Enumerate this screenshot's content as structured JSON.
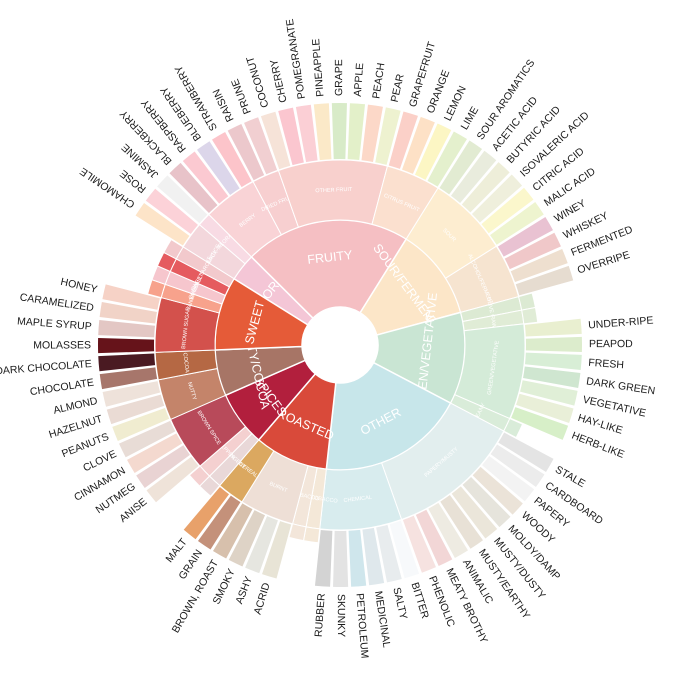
{
  "wheel": {
    "categories": [
      {
        "label": "FLORAL",
        "color": "#f4c6d6",
        "subs": [
          {
            "label": "BLACK TEA",
            "color": "#f3d7dc",
            "leaves": [
              {
                "label": "CHAMOMILE",
                "color": "#fde4c8"
              },
              {
                "label": "ROSE",
                "color": "#fcd2d8"
              }
            ]
          },
          {
            "label": "FLORAL",
            "color": "#f8dbe4",
            "leaves": [
              {
                "label": "JASMINE",
                "color": "#f1f1f1"
              }
            ]
          }
        ]
      },
      {
        "label": "FRUITY",
        "color": "#f5bfc3",
        "subs": [
          {
            "label": "BERRY",
            "color": "#f9d3d6",
            "leaves": [
              {
                "label": "BLACKBERRY",
                "color": "#e8c3c9"
              },
              {
                "label": "RASPBERRY",
                "color": "#fbc9d1"
              },
              {
                "label": "BLUEBERRY",
                "color": "#dcd6ea"
              },
              {
                "label": "STRAWBERRY",
                "color": "#fcc4ca"
              }
            ]
          },
          {
            "label": "DRIED FRUIT",
            "color": "#f7cfd0",
            "leaves": [
              {
                "label": "RAISIN",
                "color": "#ecc8cc"
              },
              {
                "label": "PRUNE",
                "color": "#f1cfd1"
              }
            ]
          },
          {
            "label": "OTHER FRUIT",
            "color": "#f8d0cd",
            "leaves": [
              {
                "label": "COCONUT",
                "color": "#f6e3d8"
              },
              {
                "label": "CHERRY",
                "color": "#fbc6cf"
              },
              {
                "label": "POMEGRANATE",
                "color": "#fbcfd5"
              },
              {
                "label": "PINEAPPLE",
                "color": "#fbe9c8"
              },
              {
                "label": "GRAPE",
                "color": "#d8ebc8"
              },
              {
                "label": "APPLE",
                "color": "#e3f0c9"
              },
              {
                "label": "PEACH",
                "color": "#fcd8c8"
              },
              {
                "label": "PEAR",
                "color": "#eef2d0"
              }
            ]
          },
          {
            "label": "CITRUS FRUIT",
            "color": "#fbe0cf",
            "leaves": [
              {
                "label": "GRAPEFRUIT",
                "color": "#fbd0c8"
              },
              {
                "label": "ORANGE",
                "color": "#fde1c6"
              },
              {
                "label": "LEMON",
                "color": "#fcf6c4"
              },
              {
                "label": "LIME",
                "color": "#e4f0cd"
              }
            ]
          }
        ]
      },
      {
        "label": "SOUR/FERMENTED",
        "color": "#fce6c8",
        "subs": [
          {
            "label": "SOUR",
            "color": "#fdedd0",
            "leaves": [
              {
                "label": "SOUR AROMATICS",
                "color": "#e2ebd2"
              },
              {
                "label": "ACETIC ACID",
                "color": "#e9ecdd"
              },
              {
                "label": "BUTYRIC ACID",
                "color": "#eeeed9"
              },
              {
                "label": "ISOVALERIC ACID",
                "color": "#efefdc"
              },
              {
                "label": "CITRIC ACID",
                "color": "#fbf7cc"
              },
              {
                "label": "MALIC ACID",
                "color": "#eef4cf"
              }
            ]
          },
          {
            "label": "ALCOHOL/FERMENTED",
            "color": "#f6e4d0",
            "leaves": [
              {
                "label": "WINEY",
                "color": "#e9c2d2"
              },
              {
                "label": "WHISKEY",
                "color": "#f0c8c9"
              },
              {
                "label": "FERMENTED",
                "color": "#eedfcf"
              },
              {
                "label": "OVERRIPE",
                "color": "#e6dcd0"
              }
            ]
          }
        ]
      },
      {
        "label": "GREEN/VEGETATIVE",
        "color": "#c9e5d3",
        "subs": [
          {
            "label": "OLIVE OIL",
            "color": "#dcead3",
            "leaves": []
          },
          {
            "label": "RAW",
            "color": "#e0ecd6",
            "leaves": []
          },
          {
            "label": "GREEN/VEGETATIVE",
            "color": "#d4ebd8",
            "leaves": [
              {
                "label": "UNDER-RIPE",
                "color": "#e9efd0"
              },
              {
                "label": "PEAPOD",
                "color": "#dceccc"
              },
              {
                "label": "FRESH",
                "color": "#d8eed6"
              },
              {
                "label": "DARK GREEN",
                "color": "#cfe6d0"
              },
              {
                "label": "VEGETATIVE",
                "color": "#e0efd7"
              },
              {
                "label": "HAY-LIKE",
                "color": "#e9efd8"
              },
              {
                "label": "HERB-LIKE",
                "color": "#d7efc8"
              }
            ]
          },
          {
            "label": "BEANY",
            "color": "#d9ecd9",
            "leaves": []
          }
        ]
      },
      {
        "label": "OTHER",
        "color": "#c7e6ea",
        "subs": [
          {
            "label": "PAPERY/MUSTY",
            "color": "#e2eeee",
            "leaves": [
              {
                "label": "STALE",
                "color": "#e4e4e4"
              },
              {
                "label": "CARDBOARD",
                "color": "#ececec"
              },
              {
                "label": "PAPERY",
                "color": "#f3f3f3"
              },
              {
                "label": "WOODY",
                "color": "#ebe3d8"
              },
              {
                "label": "MOLDY/DAMP",
                "color": "#e6e4dc"
              },
              {
                "label": "MUSTY/DUSTY",
                "color": "#ebe6da"
              },
              {
                "label": "MUSTY/EARTHY",
                "color": "#e8e1d6"
              },
              {
                "label": "ANIMALIC",
                "color": "#eeebe2"
              },
              {
                "label": "MEATY BROTHY",
                "color": "#f2d6d6"
              },
              {
                "label": "PHENOLIC",
                "color": "#f6e2e0"
              }
            ]
          },
          {
            "label": "CHEMICAL",
            "color": "#d8ecee",
            "leaves": [
              {
                "label": "BITTER",
                "color": "#f7f9fb"
              },
              {
                "label": "SALTY",
                "color": "#e8ecee"
              },
              {
                "label": "MEDICINAL",
                "color": "#dfe8ec"
              },
              {
                "label": "PETROLEUM",
                "color": "#cfe6ec"
              },
              {
                "label": "SKUNKY",
                "color": "#e3e3e3"
              },
              {
                "label": "RUBBER",
                "color": "#d3d3d3"
              }
            ]
          }
        ]
      },
      {
        "label": "ROASTED",
        "color": "#d94a3a",
        "subs": [
          {
            "label": "PIPE TOBACCO",
            "color": "#f4e8d8",
            "leaves": []
          },
          {
            "label": "TOBACCO",
            "color": "#f3e6da",
            "leaves": []
          },
          {
            "label": "BURNT",
            "color": "#eedfd6",
            "leaves": [
              {
                "label": "ACRID",
                "color": "#e8e4d6"
              },
              {
                "label": "ASHY",
                "color": "#e6e6e0"
              },
              {
                "label": "SMOKY",
                "color": "#ded3c6"
              },
              {
                "label": "BROWN, ROAST",
                "color": "#d7c0ac"
              }
            ]
          },
          {
            "label": "CEREAL",
            "color": "#dba860",
            "leaves": [
              {
                "label": "GRAIN",
                "color": "#c4917a"
              },
              {
                "label": "MALT",
                "color": "#e8a16a"
              }
            ]
          }
        ]
      },
      {
        "label": "SPICES",
        "color": "#b21f3d",
        "subs": [
          {
            "label": "PUNGENT",
            "color": "#e9d8d8",
            "leaves": []
          },
          {
            "label": "PEPPER",
            "color": "#f4d0d0",
            "leaves": []
          },
          {
            "label": "BROWN SPICE",
            "color": "#b84a5a",
            "leaves": [
              {
                "label": "ANISE",
                "color": "#efe3d9"
              },
              {
                "label": "NUTMEG",
                "color": "#e9d3d3"
              },
              {
                "label": "CINNAMON",
                "color": "#f4d9cf"
              },
              {
                "label": "CLOVE",
                "color": "#e8dcd6"
              }
            ]
          }
        ]
      },
      {
        "label": "NUTTY/COCOA",
        "color": "#a77566",
        "subs": [
          {
            "label": "NUTTY",
            "color": "#c4846a",
            "leaves": [
              {
                "label": "PEANUTS",
                "color": "#f0ecd0"
              },
              {
                "label": "HAZELNUT",
                "color": "#eadbd4"
              },
              {
                "label": "ALMOND",
                "color": "#eee2da"
              }
            ]
          },
          {
            "label": "COCOA",
            "color": "#b56844",
            "leaves": [
              {
                "label": "CHOCOLATE",
                "color": "#a7766b"
              },
              {
                "label": "DARK CHOCOLATE",
                "color": "#4a1a22"
              }
            ]
          }
        ]
      },
      {
        "label": "SWEET",
        "color": "#e55b38",
        "subs": [
          {
            "label": "BROWN SUGAR",
            "color": "#d3514c",
            "leaves": [
              {
                "label": "MOLASSES",
                "color": "#66131a"
              },
              {
                "label": "MAPLE SYRUP",
                "color": "#e3c7c4"
              },
              {
                "label": "CARAMELIZED",
                "color": "#f1d3c7"
              },
              {
                "label": "HONEY",
                "color": "#f6d2c6"
              }
            ]
          },
          {
            "label": "VANILLA",
            "color": "#f7a28c",
            "leaves": []
          },
          {
            "label": "VANILLIN",
            "color": "#f6c6cd",
            "leaves": []
          },
          {
            "label": "OVERALL SWEET",
            "color": "#e55b5f",
            "leaves": []
          },
          {
            "label": "SWEET AROMATICS",
            "color": "#f2c9cc",
            "leaves": []
          }
        ]
      }
    ]
  }
}
